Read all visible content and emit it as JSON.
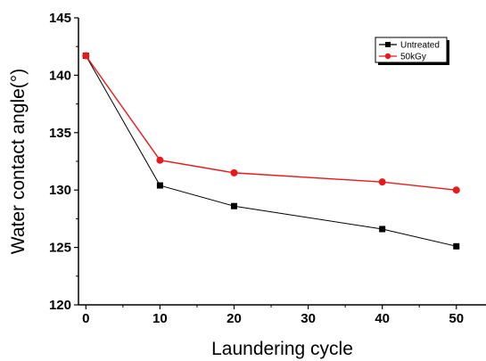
{
  "chart_data": {
    "type": "line",
    "xlabel": "Laundering cycle",
    "ylabel": "Water contact angle(°)",
    "xlim": [
      -1,
      54
    ],
    "ylim": [
      120,
      145
    ],
    "x_ticks": [
      0,
      10,
      20,
      30,
      40,
      50
    ],
    "y_ticks": [
      120,
      125,
      130,
      135,
      140,
      145
    ],
    "grid": false,
    "legend_position": "top-right",
    "series": [
      {
        "name": "Untreated",
        "color": "#000000",
        "marker": "square",
        "x": [
          0,
          10,
          20,
          40,
          50
        ],
        "y": [
          141.7,
          130.4,
          128.6,
          126.6,
          125.1
        ]
      },
      {
        "name": "50kGy",
        "color": "#e8181b",
        "marker": "circle",
        "x": [
          0,
          10,
          20,
          40,
          50
        ],
        "y": [
          141.7,
          132.6,
          131.5,
          130.7,
          130.0
        ]
      }
    ]
  }
}
